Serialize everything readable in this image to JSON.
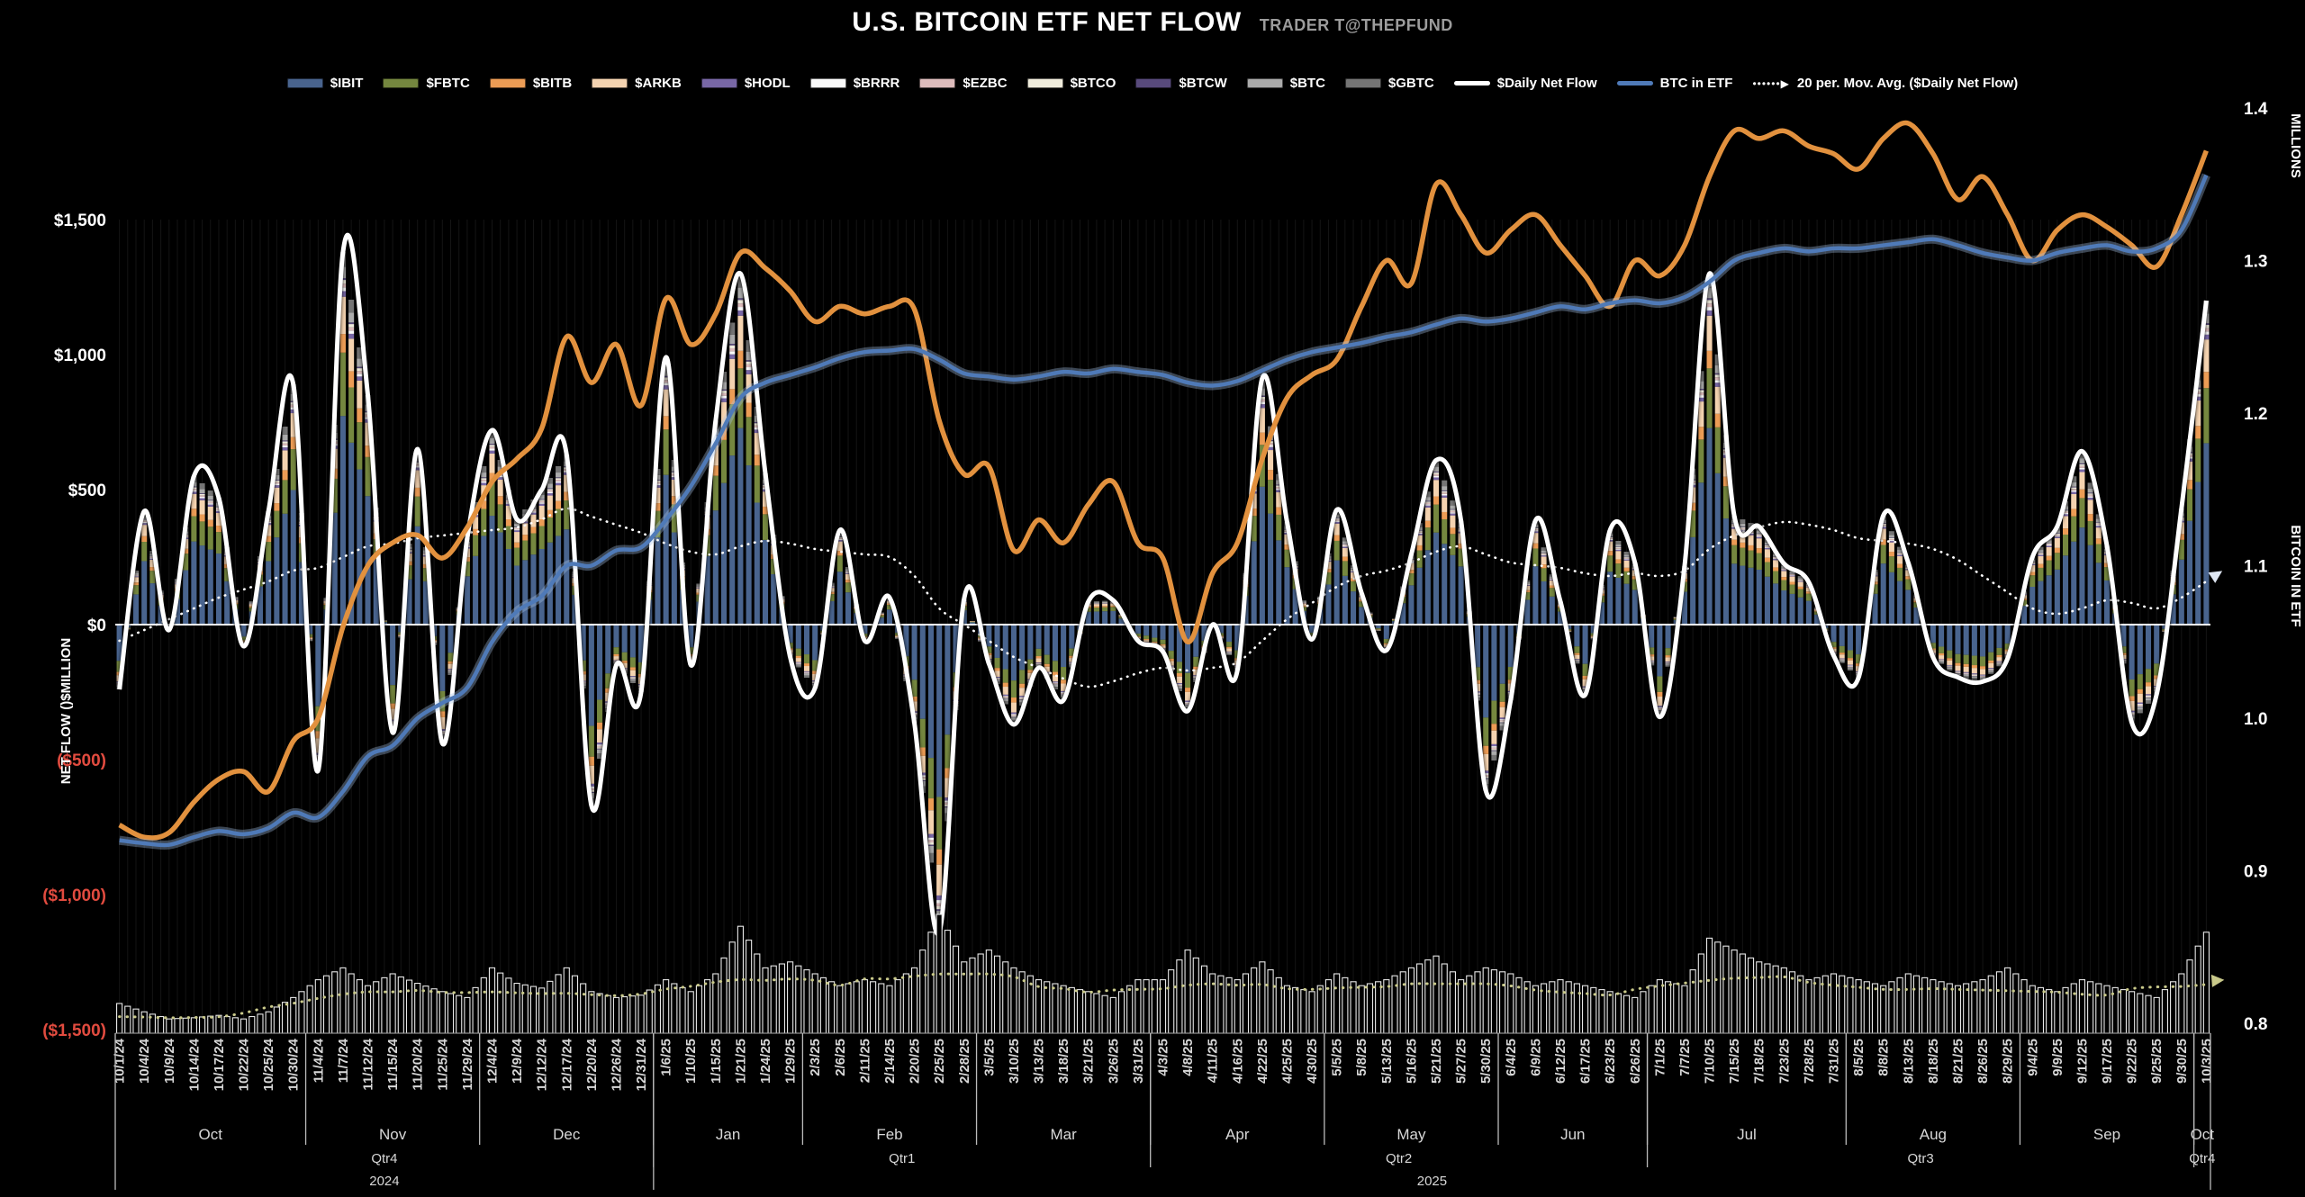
{
  "header": {
    "title": "U.S. BITCOIN ETF NET FLOW",
    "subtitle": "TRADER T@THEPFUND"
  },
  "legend": [
    {
      "label": "$IBIT",
      "swatch": "bar",
      "color": "#49648E"
    },
    {
      "label": "$FBTC",
      "swatch": "bar",
      "color": "#75873F"
    },
    {
      "label": "$BITB",
      "swatch": "bar",
      "color": "#EC9C55"
    },
    {
      "label": "$ARKB",
      "swatch": "bar",
      "color": "#F4D3B0"
    },
    {
      "label": "$HODL",
      "swatch": "bar",
      "color": "#7867A6"
    },
    {
      "label": "$BRRR",
      "swatch": "bar",
      "color": "#FAFAFA"
    },
    {
      "label": "$EZBC",
      "swatch": "bar",
      "color": "#DDBCBC"
    },
    {
      "label": "$BTCO",
      "swatch": "bar",
      "color": "#F0ECDC"
    },
    {
      "label": "$BTCW",
      "swatch": "bar",
      "color": "#584A7C"
    },
    {
      "label": "$BTC",
      "swatch": "bar",
      "color": "#ABABAB"
    },
    {
      "label": "$GBTC",
      "swatch": "bar",
      "color": "#757575"
    },
    {
      "label": "$Daily Net Flow",
      "swatch": "line",
      "color": "#FFFFFF"
    },
    {
      "label": "BTC in ETF",
      "swatch": "line",
      "color": "#4F7AB8"
    },
    {
      "label": "20 per. Mov. Avg. ($Daily Net Flow)",
      "swatch": "dotted-arrow",
      "color": "#FFFFFF"
    }
  ],
  "axes": {
    "left": {
      "title": "NET FLOW ()$MILLION",
      "ticks": [
        {
          "label": "$1,500",
          "value": 1500,
          "color": "#FFFFFF"
        },
        {
          "label": "$1,000",
          "value": 1000,
          "color": "#FFFFFF"
        },
        {
          "label": "$500",
          "value": 500,
          "color": "#FFFFFF"
        },
        {
          "label": "$0",
          "value": 0,
          "color": "#FFFFFF"
        },
        {
          "label": "($500)",
          "value": -500,
          "color": "#E14B3F"
        },
        {
          "label": "($1,000)",
          "value": -1000,
          "color": "#E14B3F"
        },
        {
          "label": "($1,500)",
          "value": -1500,
          "color": "#E14B3F"
        }
      ]
    },
    "right": {
      "title_top": "MILLIONS",
      "title_mid": "BITCOIN IN ETF",
      "ticks": [
        {
          "label": "1.4",
          "value": 1.4
        },
        {
          "label": "1.3",
          "value": 1.3
        },
        {
          "label": "1.2",
          "value": 1.2
        },
        {
          "label": "1.1",
          "value": 1.1
        },
        {
          "label": "1.0",
          "value": 1.0
        },
        {
          "label": "0.9",
          "value": 0.9
        },
        {
          "label": "0.8",
          "value": 0.8
        }
      ]
    }
  },
  "chart_data": {
    "type": "bar",
    "subtype": "stacked-bars-with-lines",
    "title": "U.S. BITCOIN ETF NET FLOW",
    "xlabel": "",
    "ylabel_left": "NET FLOW ()$MILLION",
    "ylabel_right": "BITCOIN IN ETF (MILLIONS)",
    "ylim_left": [
      -1500,
      1500
    ],
    "ylim_right": [
      0.8,
      1.4
    ],
    "grid": "vertical-daily-faint",
    "legend_position": "top-center",
    "dates": [
      "10/1/24",
      "10/4/24",
      "10/9/24",
      "10/14/24",
      "10/17/24",
      "10/22/24",
      "10/25/24",
      "10/30/24",
      "11/4/24",
      "11/7/24",
      "11/12/24",
      "11/15/24",
      "11/20/24",
      "11/25/24",
      "11/29/24",
      "12/4/24",
      "12/9/24",
      "12/12/24",
      "12/17/24",
      "12/20/24",
      "12/26/24",
      "12/31/24",
      "1/6/25",
      "1/10/25",
      "1/15/25",
      "1/21/25",
      "1/24/25",
      "1/29/25",
      "2/3/25",
      "2/6/25",
      "2/11/25",
      "2/14/25",
      "2/20/25",
      "2/25/25",
      "2/28/25",
      "3/5/25",
      "3/10/25",
      "3/13/25",
      "3/18/25",
      "3/21/25",
      "3/26/25",
      "3/31/25",
      "4/3/25",
      "4/8/25",
      "4/11/25",
      "4/16/25",
      "4/22/25",
      "4/25/25",
      "4/30/25",
      "5/5/25",
      "5/8/25",
      "5/13/25",
      "5/16/25",
      "5/21/25",
      "5/27/25",
      "5/30/25",
      "6/4/25",
      "6/9/25",
      "6/12/25",
      "6/17/25",
      "6/23/25",
      "6/26/25",
      "7/1/25",
      "7/7/25",
      "7/10/25",
      "7/15/25",
      "7/18/25",
      "7/23/25",
      "7/28/25",
      "7/31/25",
      "8/5/25",
      "8/8/25",
      "8/13/25",
      "8/18/25",
      "8/21/25",
      "8/26/25",
      "8/29/25",
      "9/4/25",
      "9/9/25",
      "9/12/25",
      "9/17/25",
      "9/22/25",
      "9/25/25",
      "9/30/25",
      "10/3/25"
    ],
    "series": [
      {
        "name": "daily_net_flow",
        "legend_label": "$Daily Net Flow",
        "style": "thick-white-line",
        "units": "$M",
        "values": [
          -240,
          420,
          -20,
          550,
          470,
          -80,
          420,
          890,
          -540,
          1380,
          850,
          -400,
          650,
          -440,
          320,
          720,
          390,
          500,
          630,
          -670,
          -150,
          -250,
          990,
          -150,
          755,
          1300,
          560,
          -120,
          -235,
          350,
          -60,
          100,
          -365,
          -1140,
          95,
          -145,
          -370,
          -160,
          -280,
          85,
          90,
          -60,
          -100,
          -320,
          0,
          -170,
          912,
          380,
          -55,
          425,
          117,
          -95,
          260,
          609,
          385,
          -615,
          -280,
          386,
          86,
          -260,
          350,
          230,
          -342,
          217,
          1300,
          403,
          363,
          226,
          157,
          -115,
          -197,
          404,
          230,
          -121,
          -195,
          -211,
          -126,
          250,
          364,
          642,
          292,
          -363,
          -258,
          430,
          1200
        ]
      },
      {
        "name": "mov_avg_20",
        "legend_label": "20 per. Mov. Avg. ($Daily Net Flow)",
        "style": "dotted-white-line-with-arrow",
        "units": "$M",
        "values": [
          -60,
          -20,
          20,
          60,
          100,
          130,
          160,
          200,
          210,
          250,
          290,
          300,
          320,
          330,
          340,
          350,
          360,
          390,
          430,
          400,
          370,
          340,
          300,
          270,
          260,
          290,
          310,
          300,
          280,
          270,
          260,
          250,
          180,
          60,
          0,
          -60,
          -120,
          -160,
          -200,
          -230,
          -210,
          -180,
          -160,
          -170,
          -160,
          -140,
          -60,
          20,
          80,
          140,
          180,
          200,
          230,
          270,
          290,
          260,
          230,
          220,
          210,
          190,
          180,
          190,
          180,
          200,
          280,
          330,
          360,
          380,
          370,
          350,
          320,
          310,
          300,
          280,
          240,
          180,
          120,
          60,
          40,
          60,
          90,
          80,
          60,
          100,
          160
        ]
      },
      {
        "name": "btc_in_etf",
        "legend_label": "BTC in ETF",
        "style": "blue-line-right-axis",
        "units": "millions BTC",
        "values": [
          0.92,
          0.918,
          0.917,
          0.922,
          0.926,
          0.924,
          0.928,
          0.938,
          0.935,
          0.952,
          0.975,
          0.982,
          1.0,
          1.01,
          1.02,
          1.05,
          1.07,
          1.08,
          1.1,
          1.1,
          1.11,
          1.112,
          1.13,
          1.152,
          1.18,
          1.21,
          1.22,
          1.225,
          1.23,
          1.236,
          1.24,
          1.241,
          1.242,
          1.235,
          1.226,
          1.224,
          1.222,
          1.224,
          1.227,
          1.226,
          1.229,
          1.227,
          1.225,
          1.22,
          1.218,
          1.221,
          1.228,
          1.235,
          1.24,
          1.243,
          1.246,
          1.25,
          1.253,
          1.258,
          1.262,
          1.26,
          1.262,
          1.266,
          1.27,
          1.268,
          1.272,
          1.274,
          1.272,
          1.276,
          1.286,
          1.3,
          1.305,
          1.308,
          1.306,
          1.308,
          1.308,
          1.31,
          1.312,
          1.314,
          1.31,
          1.305,
          1.302,
          1.3,
          1.305,
          1.308,
          1.31,
          1.306,
          1.308,
          1.32,
          1.356
        ]
      },
      {
        "name": "orange_line_unlabeled",
        "legend_label": null,
        "style": "thick-orange-line",
        "units": "right-axis-units",
        "values": [
          0.93,
          0.922,
          0.925,
          0.945,
          0.96,
          0.965,
          0.952,
          0.985,
          1.0,
          1.06,
          1.1,
          1.115,
          1.12,
          1.105,
          1.125,
          1.155,
          1.17,
          1.19,
          1.25,
          1.22,
          1.245,
          1.205,
          1.275,
          1.245,
          1.265,
          1.305,
          1.295,
          1.28,
          1.26,
          1.27,
          1.265,
          1.27,
          1.268,
          1.195,
          1.16,
          1.165,
          1.11,
          1.13,
          1.115,
          1.14,
          1.155,
          1.115,
          1.105,
          1.05,
          1.095,
          1.115,
          1.17,
          1.21,
          1.225,
          1.235,
          1.27,
          1.3,
          1.285,
          1.35,
          1.33,
          1.305,
          1.32,
          1.33,
          1.31,
          1.29,
          1.27,
          1.3,
          1.29,
          1.31,
          1.355,
          1.385,
          1.38,
          1.385,
          1.375,
          1.37,
          1.36,
          1.38,
          1.39,
          1.37,
          1.34,
          1.355,
          1.33,
          1.3,
          1.32,
          1.33,
          1.322,
          1.31,
          1.296,
          1.33,
          1.372
        ]
      },
      {
        "name": "bottom_volume_histogram",
        "legend_label": null,
        "style": "hollow-white-bars",
        "units": "relative 0-1",
        "values": [
          0.25,
          0.18,
          0.12,
          0.13,
          0.15,
          0.12,
          0.18,
          0.3,
          0.45,
          0.55,
          0.4,
          0.5,
          0.42,
          0.35,
          0.3,
          0.55,
          0.42,
          0.38,
          0.55,
          0.35,
          0.3,
          0.32,
          0.45,
          0.35,
          0.5,
          0.9,
          0.55,
          0.6,
          0.5,
          0.4,
          0.45,
          0.4,
          0.55,
          1.0,
          0.6,
          0.7,
          0.55,
          0.45,
          0.4,
          0.35,
          0.3,
          0.45,
          0.45,
          0.7,
          0.5,
          0.45,
          0.6,
          0.4,
          0.35,
          0.5,
          0.4,
          0.45,
          0.55,
          0.65,
          0.45,
          0.55,
          0.5,
          0.4,
          0.45,
          0.4,
          0.35,
          0.3,
          0.45,
          0.4,
          0.8,
          0.7,
          0.6,
          0.55,
          0.45,
          0.5,
          0.45,
          0.4,
          0.5,
          0.45,
          0.4,
          0.45,
          0.55,
          0.4,
          0.35,
          0.45,
          0.4,
          0.35,
          0.3,
          0.5,
          0.85
        ]
      }
    ],
    "stacked_bars": {
      "note_total_equals": "daily_net_flow",
      "etfs": [
        {
          "name": "$IBIT",
          "color": "#49648E",
          "approx_share": 0.56
        },
        {
          "name": "$FBTC",
          "color": "#75873F",
          "approx_share": 0.17
        },
        {
          "name": "$BITB",
          "color": "#EC9C55",
          "approx_share": 0.05
        },
        {
          "name": "$ARKB",
          "color": "#F4D3B0",
          "approx_share": 0.1
        },
        {
          "name": "$HODL",
          "color": "#7867A6",
          "approx_share": 0.015
        },
        {
          "name": "$BRRR",
          "color": "#FAFAFA",
          "approx_share": 0.01
        },
        {
          "name": "$EZBC",
          "color": "#DDBCBC",
          "approx_share": 0.01
        },
        {
          "name": "$BTCO",
          "color": "#F0ECDC",
          "approx_share": 0.01
        },
        {
          "name": "$BTCW",
          "color": "#584A7C",
          "approx_share": 0.005
        },
        {
          "name": "$BTC",
          "color": "#ABABAB",
          "approx_share": 0.03
        },
        {
          "name": "$GBTC",
          "color": "#757575",
          "approx_share": 0.04
        }
      ]
    },
    "x_axis_groups": {
      "months": [
        {
          "label": "Oct",
          "samples": 8
        },
        {
          "label": "Nov",
          "samples": 7
        },
        {
          "label": "Dec",
          "samples": 7
        },
        {
          "label": "Jan",
          "samples": 6
        },
        {
          "label": "Feb",
          "samples": 7
        },
        {
          "label": "Mar",
          "samples": 7
        },
        {
          "label": "Apr",
          "samples": 7
        },
        {
          "label": "May",
          "samples": 7
        },
        {
          "label": "Jun",
          "samples": 6
        },
        {
          "label": "Jul",
          "samples": 8
        },
        {
          "label": "Aug",
          "samples": 7
        },
        {
          "label": "Sep",
          "samples": 7
        },
        {
          "label": "Oct",
          "samples": 1
        }
      ],
      "quarters": [
        {
          "label": "Qtr4",
          "samples": 22
        },
        {
          "label": "Qtr1",
          "samples": 20
        },
        {
          "label": "Qtr2",
          "samples": 20
        },
        {
          "label": "Qtr3",
          "samples": 22
        },
        {
          "label": "Qtr4",
          "samples": 1
        }
      ],
      "years": [
        {
          "label": "2024",
          "samples": 22
        },
        {
          "label": "2025",
          "samples": 63
        }
      ]
    },
    "colors": {
      "background": "#000000",
      "daily_net_flow_line": "#FFFFFF",
      "btc_in_etf_line": "#4F7AB8",
      "btc_in_etf_glow": "#A9C7EC",
      "orange_line": "#E2913E",
      "mov_avg_dotted": "#FFFFFF",
      "volume_outline": "#E8E8E8",
      "volume_mov_avg_dotted": "#C9C98A",
      "negative_tick_red": "#E14B3F",
      "zero_line": "#FFFFFF",
      "day_gridline": "rgba(255,255,255,0.08)",
      "separator_line": "#BBBBBB"
    }
  }
}
